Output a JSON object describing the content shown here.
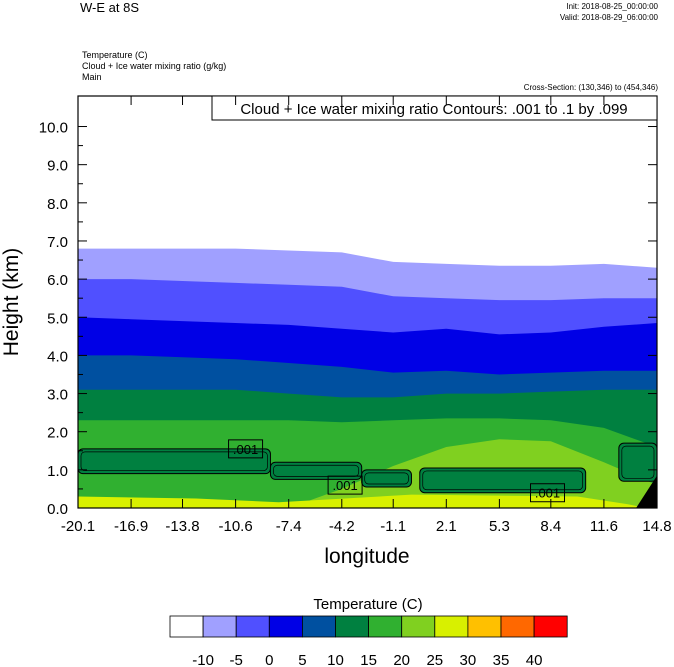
{
  "header": {
    "title": "W-E at 8S",
    "init": "Init: 2018-08-25_00:00:00",
    "valid": "Valid: 2018-08-29_06:00:00",
    "fields": [
      "Temperature   (C)",
      "Cloud + Ice water mixing ratio   (g/kg)",
      "Main"
    ],
    "cross_section": "Cross-Section: (130,346) to (454,346)"
  },
  "colors": {
    "levels": [
      "#ffffff",
      "#a0a0ff",
      "#5050ff",
      "#0000e6",
      "#0050a0",
      "#008040",
      "#30b030",
      "#80d020",
      "#d8f000",
      "#ffc000",
      "#ff6800",
      "#ff0000"
    ],
    "contour": "#000000",
    "terrain": "#000000"
  },
  "chart_data": {
    "type": "heatmap",
    "title": "Cloud + Ice water mixing ratio Contours: .001 to .1 by .099",
    "xlabel": "longitude",
    "ylabel": "Height (km)",
    "x_ticks": [
      "-20.1",
      "-16.9",
      "-13.8",
      "-10.6",
      "-7.4",
      "-4.2",
      "-1.1",
      "2.1",
      "5.3",
      "8.4",
      "11.6",
      "14.8"
    ],
    "y_ticks": [
      "0.0",
      "1.0",
      "2.0",
      "3.0",
      "4.0",
      "5.0",
      "6.0",
      "7.0",
      "8.0",
      "9.0",
      "10.0"
    ],
    "ylim": [
      0,
      10.8
    ],
    "x_positions": [
      -20.1,
      -16.9,
      -13.8,
      -10.6,
      -7.4,
      -4.2,
      -1.1,
      2.1,
      5.3,
      8.4,
      11.6,
      14.8
    ],
    "colorbar": {
      "title": "Temperature  (C)",
      "levels": [
        "-10",
        "-5",
        "0",
        "5",
        "10",
        "15",
        "20",
        "25",
        "30",
        "35",
        "40"
      ]
    },
    "contour_labels": [
      {
        "text": ".001",
        "x": -10.0,
        "y": 1.55
      },
      {
        "text": ".001",
        "x": -4.0,
        "y": 0.6
      },
      {
        "text": ".001",
        "x": 8.2,
        "y": 0.4
      }
    ],
    "temperature_isolines_km": {
      "x": [
        -20.1,
        -16.9,
        -13.8,
        -10.6,
        -7.4,
        -4.2,
        -1.1,
        2.1,
        5.3,
        8.4,
        11.6,
        14.8
      ],
      "neg10": [
        6.8,
        6.8,
        6.8,
        6.8,
        6.75,
        6.7,
        6.45,
        6.4,
        6.35,
        6.35,
        6.4,
        6.3
      ],
      "neg5": [
        6.0,
        6.0,
        5.95,
        5.9,
        5.85,
        5.8,
        5.55,
        5.5,
        5.45,
        5.45,
        5.5,
        5.5
      ],
      "zero": [
        5.0,
        4.95,
        4.9,
        4.85,
        4.8,
        4.7,
        4.6,
        4.7,
        4.55,
        4.6,
        4.75,
        4.85
      ],
      "five": [
        4.0,
        4.0,
        3.95,
        3.9,
        3.8,
        3.7,
        3.55,
        3.6,
        3.5,
        3.55,
        3.6,
        3.6
      ],
      "ten": [
        3.1,
        3.1,
        3.1,
        3.1,
        3.0,
        2.9,
        2.9,
        3.0,
        3.0,
        3.05,
        3.1,
        3.1
      ],
      "fifteen": [
        2.3,
        2.3,
        2.3,
        2.3,
        2.3,
        2.25,
        2.3,
        2.35,
        2.35,
        2.3,
        2.1,
        1.6
      ],
      "twenty": [
        0.0,
        0.0,
        0.0,
        0.0,
        0.0,
        0.5,
        1.1,
        1.6,
        1.8,
        1.75,
        1.2,
        0.6
      ]
    }
  }
}
